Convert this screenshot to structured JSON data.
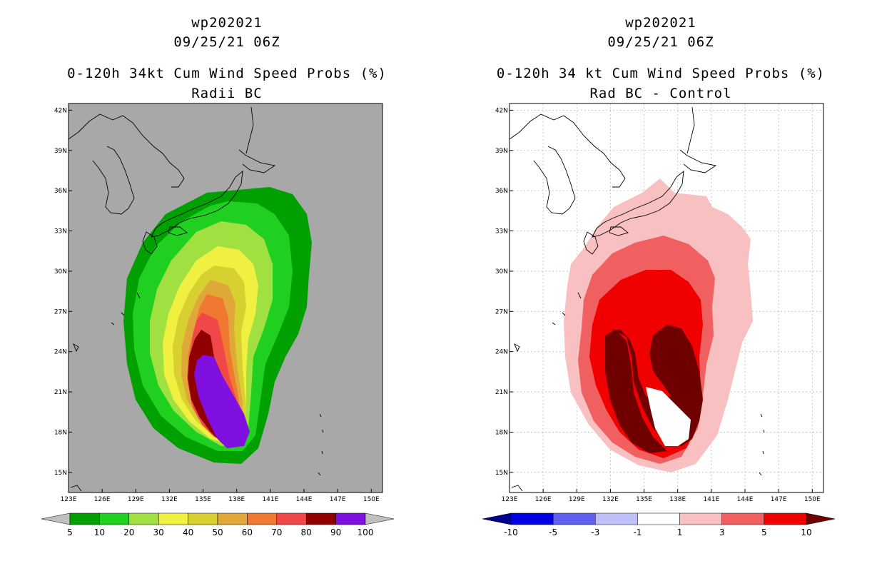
{
  "panels": [
    {
      "storm_id": "wp202021",
      "date_time": "09/25/21 06Z",
      "product_title": "0-120h 34kt Cum Wind Speed Probs (%)",
      "subtitle": "Radii BC",
      "background_color": "#a8a8a8"
    },
    {
      "storm_id": "wp202021",
      "date_time": "09/25/21 06Z",
      "product_title": "0-120h 34 kt Cum Wind Speed Probs (%)",
      "subtitle": "Rad BC - Control",
      "background_color": "#ffffff"
    }
  ],
  "chart_data": [
    {
      "type": "contour-map",
      "title": "0-120h 34kt Cum Wind Speed Probs (%)",
      "subtitle": "Radii BC",
      "x_ticks": [
        "123E",
        "126E",
        "129E",
        "132E",
        "135E",
        "138E",
        "141E",
        "144E",
        "147E",
        "150E"
      ],
      "y_ticks": [
        "42N",
        "39N",
        "36N",
        "33N",
        "30N",
        "27N",
        "24N",
        "21N",
        "18N",
        "15N"
      ],
      "lon_range": [
        123,
        151
      ],
      "lat_range": [
        13.5,
        42.5
      ],
      "grid": false,
      "levels": [
        5,
        10,
        20,
        30,
        40,
        50,
        60,
        70,
        80,
        90,
        100
      ],
      "colorbar": {
        "labels": [
          "5",
          "10",
          "20",
          "30",
          "40",
          "50",
          "60",
          "70",
          "80",
          "90",
          "100"
        ],
        "colors": [
          "#00a000",
          "#20d020",
          "#a0e040",
          "#f0f040",
          "#d8d030",
          "#e0a838",
          "#f07830",
          "#f04848",
          "#900000",
          "#8010e0"
        ],
        "end_left": "#c0c0c0",
        "end_right": "#c0c0c0"
      }
    },
    {
      "type": "contour-map",
      "title": "0-120h 34 kt Cum Wind Speed Probs (%)",
      "subtitle": "Rad BC - Control",
      "x_ticks": [
        "123E",
        "126E",
        "129E",
        "132E",
        "135E",
        "138E",
        "141E",
        "144E",
        "147E",
        "150E"
      ],
      "y_ticks": [
        "42N",
        "39N",
        "36N",
        "33N",
        "30N",
        "27N",
        "24N",
        "21N",
        "18N",
        "15N"
      ],
      "lon_range": [
        123,
        151
      ],
      "lat_range": [
        13.5,
        42.5
      ],
      "grid": true,
      "levels": [
        -10,
        -5,
        -3,
        -1,
        1,
        3,
        5,
        10
      ],
      "colorbar": {
        "labels": [
          "-10",
          "-5",
          "-3",
          "-1",
          "1",
          "3",
          "5",
          "10"
        ],
        "colors": [
          "#0000e0",
          "#6060f0",
          "#c0c0f8",
          "#ffffff",
          "#f8c0c0",
          "#f06060",
          "#f00000"
        ],
        "end_left": "#000090",
        "end_right": "#700000"
      }
    }
  ]
}
